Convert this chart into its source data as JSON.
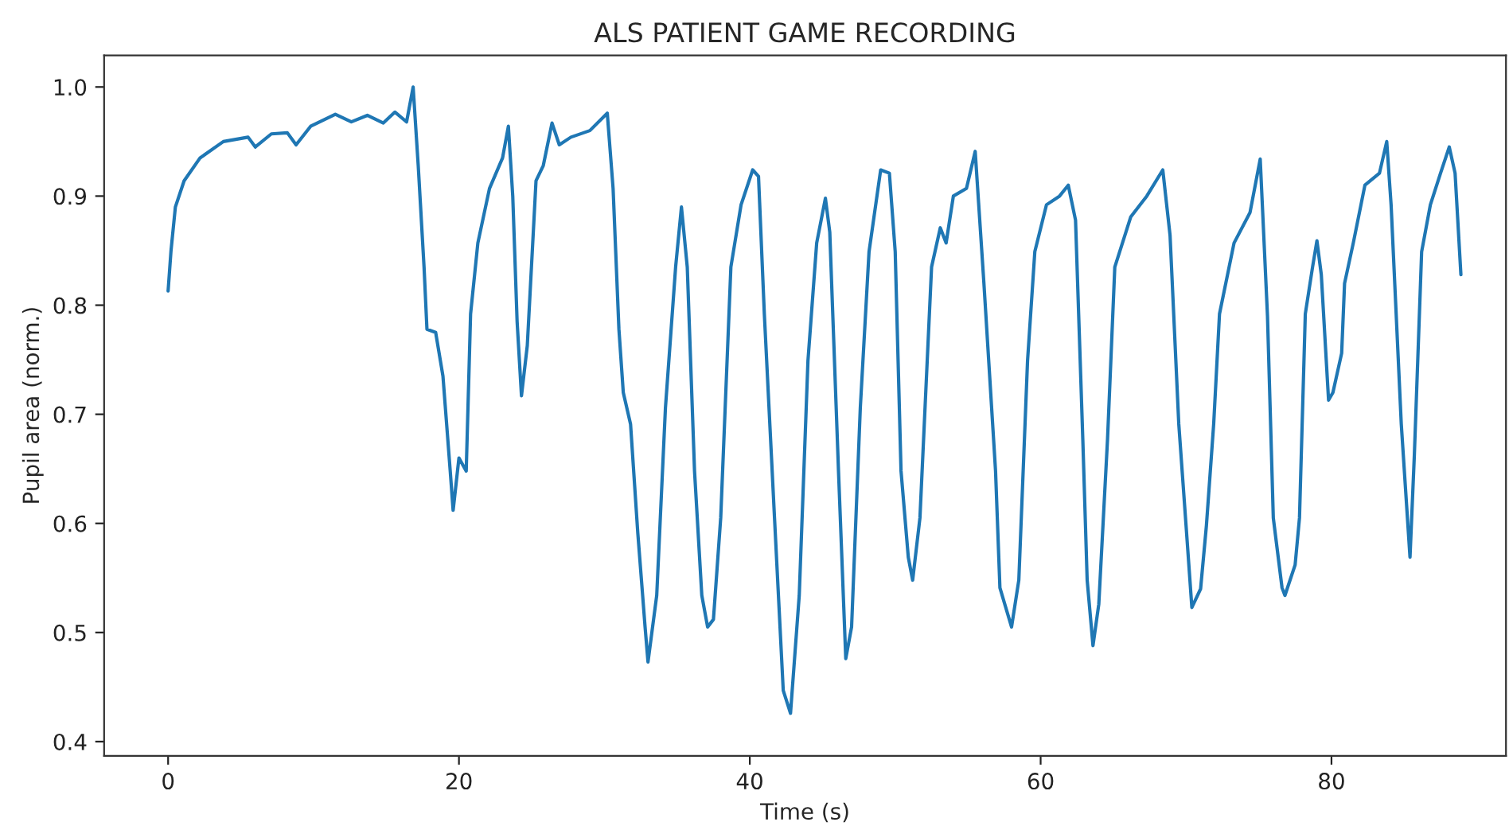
{
  "chart_data": {
    "type": "line",
    "title": "ALS PATIENT GAME RECORDING",
    "xlabel": "Time (s)",
    "ylabel": "Pupil area (norm.)",
    "xlim": [
      -4.4,
      92.0
    ],
    "xticks": [
      0,
      20,
      40,
      60,
      80
    ],
    "ylim": [
      0.387,
      1.029
    ],
    "yticks": [
      0.4,
      0.5,
      0.6,
      0.7,
      0.8,
      0.9,
      {
        "value": 1.0,
        "label": "1.0"
      }
    ],
    "grid": false,
    "series": [
      {
        "color": "#1f77b4",
        "x": [
          0,
          0.2,
          0.5,
          1.1,
          2.2,
          3.8,
          5.5,
          6,
          7.1,
          8.2,
          8.8,
          9.8,
          11.5,
          12.6,
          13.7,
          14.8,
          15.6,
          16.4,
          16.85,
          17.2,
          17.6,
          17.8,
          18.4,
          18.9,
          19.4,
          19.6,
          20.0,
          20.5,
          20.8,
          21.3,
          22.1,
          23.0,
          23.4,
          23.7,
          24.0,
          24.3,
          24.7,
          25.3,
          25.8,
          26.4,
          26.9,
          27.7,
          29.0,
          30.2,
          30.6,
          31.0,
          31.3,
          31.8,
          32.3,
          32.8,
          33.0,
          33.6,
          34.2,
          34.9,
          35.3,
          35.7,
          36.2,
          36.7,
          37.1,
          37.5,
          38.0,
          38.7,
          39.4,
          40.2,
          40.6,
          41.0,
          41.7,
          42.3,
          42.8,
          43.4,
          44.0,
          44.6,
          45.2,
          45.5,
          46.1,
          46.6,
          47.0,
          47.6,
          48.2,
          49.0,
          49.6,
          50.0,
          50.4,
          50.9,
          51.2,
          51.7,
          52.5,
          53.1,
          53.5,
          54.0,
          54.9,
          55.5,
          56.1,
          56.9,
          57.2,
          58.0,
          58.5,
          59.1,
          59.6,
          60.4,
          61.3,
          61.9,
          62.4,
          62.9,
          63.2,
          63.6,
          64.0,
          64.6,
          65.1,
          66.2,
          67.3,
          68.4,
          68.9,
          69.5,
          70.0,
          70.4,
          71.0,
          71.4,
          71.9,
          72.3,
          73.3,
          74.4,
          75.1,
          75.6,
          76.0,
          76.6,
          76.8,
          77.5,
          77.8,
          78.2,
          78.7,
          79.0,
          79.3,
          79.8,
          80.1,
          80.7,
          80.9,
          81.5,
          82.3,
          83.3,
          83.8,
          84.1,
          84.8,
          85.4,
          85.7,
          86.2,
          86.8,
          87.5,
          88.1,
          88.5,
          88.9
        ],
        "values": [
          0.813,
          0.85,
          0.89,
          0.914,
          0.935,
          0.95,
          0.954,
          0.945,
          0.957,
          0.958,
          0.947,
          0.964,
          0.975,
          0.968,
          0.974,
          0.967,
          0.977,
          0.968,
          1.0,
          0.928,
          0.835,
          0.778,
          0.775,
          0.735,
          0.648,
          0.612,
          0.66,
          0.648,
          0.792,
          0.857,
          0.907,
          0.935,
          0.964,
          0.9,
          0.785,
          0.717,
          0.763,
          0.914,
          0.928,
          0.967,
          0.947,
          0.954,
          0.96,
          0.976,
          0.907,
          0.778,
          0.72,
          0.691,
          0.591,
          0.505,
          0.473,
          0.534,
          0.706,
          0.835,
          0.89,
          0.835,
          0.648,
          0.534,
          0.505,
          0.512,
          0.605,
          0.835,
          0.892,
          0.924,
          0.918,
          0.792,
          0.605,
          0.447,
          0.426,
          0.534,
          0.749,
          0.857,
          0.898,
          0.867,
          0.648,
          0.476,
          0.505,
          0.706,
          0.849,
          0.924,
          0.921,
          0.849,
          0.648,
          0.569,
          0.548,
          0.605,
          0.835,
          0.871,
          0.857,
          0.9,
          0.907,
          0.941,
          0.82,
          0.648,
          0.541,
          0.505,
          0.548,
          0.749,
          0.849,
          0.892,
          0.9,
          0.91,
          0.878,
          0.677,
          0.548,
          0.488,
          0.526,
          0.677,
          0.835,
          0.881,
          0.9,
          0.924,
          0.864,
          0.691,
          0.598,
          0.523,
          0.54,
          0.598,
          0.691,
          0.792,
          0.857,
          0.885,
          0.934,
          0.79,
          0.605,
          0.541,
          0.534,
          0.562,
          0.605,
          0.792,
          0.835,
          0.859,
          0.828,
          0.713,
          0.72,
          0.756,
          0.82,
          0.857,
          0.91,
          0.921,
          0.95,
          0.892,
          0.691,
          0.569,
          0.663,
          0.849,
          0.892,
          0.921,
          0.945,
          0.921,
          0.828
        ]
      }
    ]
  }
}
